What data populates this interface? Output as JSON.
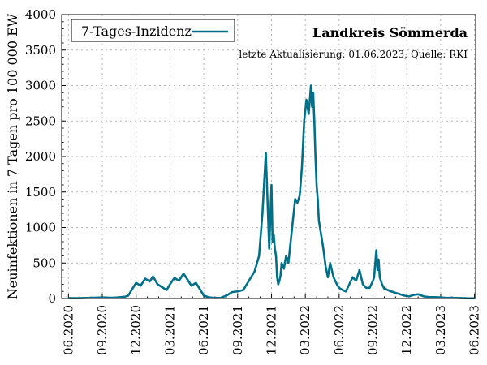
{
  "chart_data": {
    "type": "line",
    "title": "Landkreis Sömmerda",
    "subtitle": "letzte Aktualisierung: 01.06.2023; Quelle: RKI",
    "xlabel": "",
    "ylabel": "Neuinfektionen in 7 Tagen pro 100 000 EW",
    "ylim": [
      0,
      4000
    ],
    "yticks": [
      0,
      500,
      1000,
      1500,
      2000,
      2500,
      3000,
      3500,
      4000
    ],
    "xticks": [
      "06.2020",
      "09.2020",
      "12.2020",
      "03.2021",
      "06.2021",
      "09.2021",
      "12.2021",
      "03.2022",
      "06.2022",
      "09.2022",
      "12.2022",
      "03.2023",
      "06.2023"
    ],
    "xlim_months": [
      -0.6,
      36.1
    ],
    "grid": true,
    "legend": "top-left",
    "color": "#00708a",
    "series": [
      {
        "name": "7-Tages-Inzidenz",
        "x_months": [
          0,
          1,
          2,
          3,
          4,
          5,
          5.3,
          5.6,
          6,
          6.4,
          6.8,
          7.2,
          7.5,
          7.9,
          8.3,
          8.7,
          9,
          9.4,
          9.8,
          10.2,
          10.5,
          10.9,
          11.3,
          11.7,
          12,
          12.5,
          13,
          13.5,
          14,
          14.5,
          15,
          15.5,
          16,
          16.5,
          16.9,
          17.2,
          17.5,
          17.8,
          18,
          18.1,
          18.2,
          18.3,
          18.4,
          18.5,
          18.6,
          18.7,
          18.8,
          18.9,
          19.1,
          19.3,
          19.5,
          19.7,
          19.9,
          20.1,
          20.3,
          20.5,
          20.7,
          20.9,
          21.1,
          21.3,
          21.5,
          21.6,
          21.7,
          21.8,
          21.9,
          22,
          22.1,
          22.2,
          22.4,
          22.6,
          22.8,
          23,
          23.2,
          23.5,
          23.8,
          24,
          24.3,
          24.6,
          24.9,
          25.2,
          25.5,
          25.8,
          26.1,
          26.4,
          26.7,
          27,
          27.1,
          27.2,
          27.3,
          27.4,
          27.5,
          27.6,
          27.8,
          28,
          28.3,
          28.6,
          29,
          29.4,
          29.8,
          30.2,
          30.6,
          31,
          31.5,
          32,
          32.5,
          33,
          33.5,
          34,
          34.5,
          35,
          35.5,
          36
        ],
        "values": [
          5,
          5,
          10,
          15,
          10,
          25,
          40,
          120,
          220,
          180,
          280,
          240,
          310,
          200,
          160,
          120,
          200,
          290,
          250,
          350,
          280,
          180,
          220,
          120,
          40,
          15,
          8,
          10,
          40,
          90,
          100,
          120,
          250,
          380,
          600,
          1200,
          2050,
          700,
          1600,
          800,
          900,
          700,
          600,
          300,
          200,
          250,
          320,
          500,
          420,
          600,
          500,
          800,
          1100,
          1400,
          1350,
          1450,
          1850,
          2500,
          2800,
          2600,
          3000,
          2700,
          2900,
          2500,
          2000,
          1600,
          1400,
          1100,
          900,
          700,
          450,
          300,
          500,
          300,
          200,
          150,
          120,
          100,
          200,
          300,
          250,
          400,
          200,
          150,
          150,
          250,
          300,
          500,
          680,
          400,
          550,
          300,
          200,
          140,
          120,
          100,
          80,
          60,
          40,
          30,
          50,
          60,
          30,
          20,
          20,
          15,
          10,
          10,
          8,
          5,
          3,
          2
        ]
      }
    ]
  }
}
